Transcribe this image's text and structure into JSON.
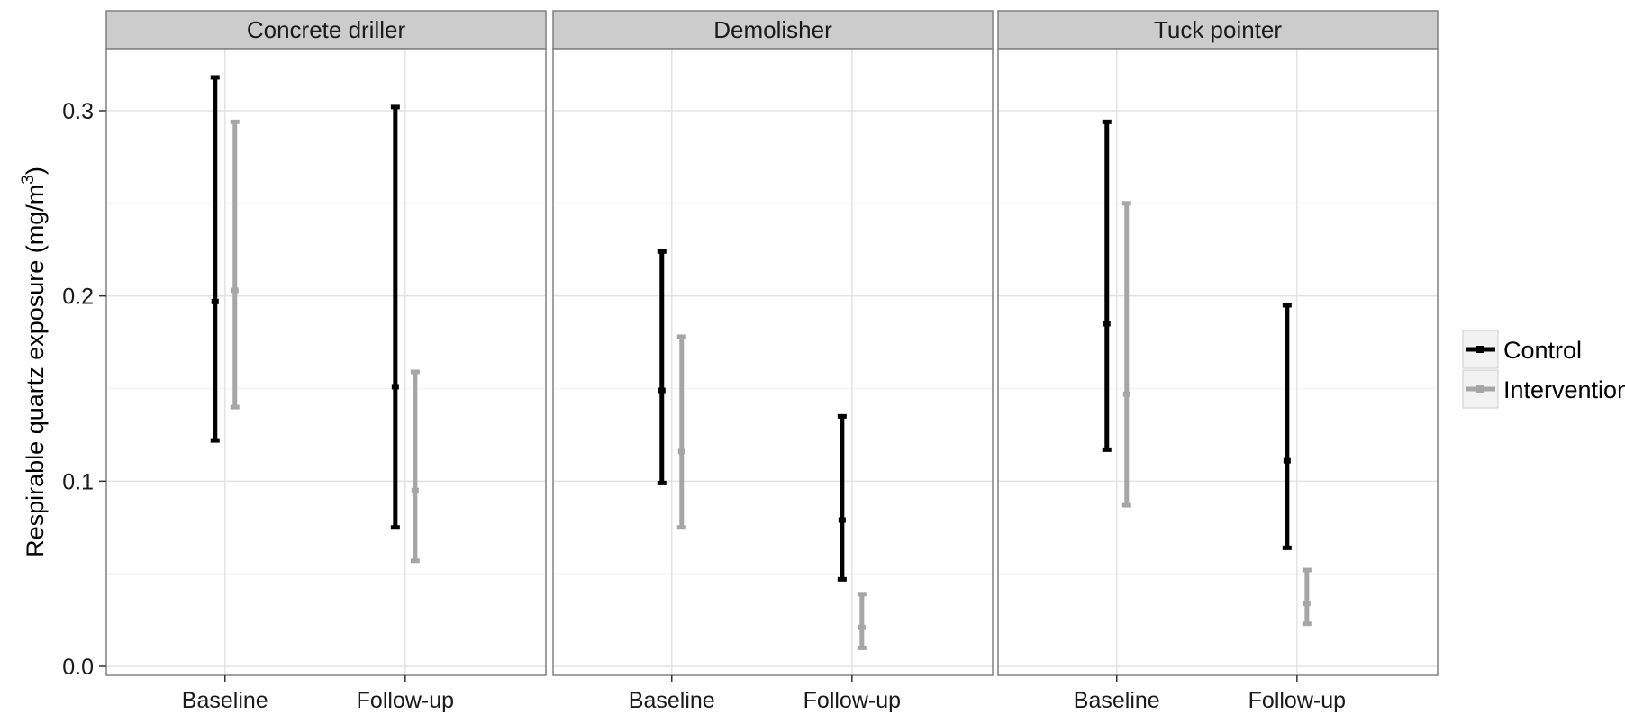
{
  "chart_data": {
    "type": "errorbar",
    "ylabel_main": "Respirable quartz exposure (mg/m",
    "ylabel_sup": "3",
    "ylabel_close": ")",
    "xlabel": "",
    "ylim": [
      0,
      0.34
    ],
    "yticks": [
      0.0,
      0.1,
      0.2,
      0.3
    ],
    "ytick_labels": [
      "0.0",
      "0.1",
      "0.2",
      "0.3"
    ],
    "categories": [
      "Baseline",
      "Follow-up"
    ],
    "grid": true,
    "legend_position": "right",
    "series_colors": {
      "Control": "#000000",
      "Intervention": "#a6a6a6"
    },
    "panels": [
      {
        "name": "Concrete driller",
        "series": [
          {
            "name": "Control",
            "points": [
              {
                "category": "Baseline",
                "mean": 0.197,
                "lower": 0.122,
                "upper": 0.318
              },
              {
                "category": "Follow-up",
                "mean": 0.151,
                "lower": 0.075,
                "upper": 0.302
              }
            ]
          },
          {
            "name": "Intervention",
            "points": [
              {
                "category": "Baseline",
                "mean": 0.203,
                "lower": 0.14,
                "upper": 0.294
              },
              {
                "category": "Follow-up",
                "mean": 0.095,
                "lower": 0.057,
                "upper": 0.159
              }
            ]
          }
        ]
      },
      {
        "name": "Demolisher",
        "series": [
          {
            "name": "Control",
            "points": [
              {
                "category": "Baseline",
                "mean": 0.149,
                "lower": 0.099,
                "upper": 0.224
              },
              {
                "category": "Follow-up",
                "mean": 0.079,
                "lower": 0.047,
                "upper": 0.135
              }
            ]
          },
          {
            "name": "Intervention",
            "points": [
              {
                "category": "Baseline",
                "mean": 0.116,
                "lower": 0.075,
                "upper": 0.178
              },
              {
                "category": "Follow-up",
                "mean": 0.021,
                "lower": 0.01,
                "upper": 0.039
              }
            ]
          }
        ]
      },
      {
        "name": "Tuck pointer",
        "series": [
          {
            "name": "Control",
            "points": [
              {
                "category": "Baseline",
                "mean": 0.185,
                "lower": 0.117,
                "upper": 0.294
              },
              {
                "category": "Follow-up",
                "mean": 0.111,
                "lower": 0.064,
                "upper": 0.195
              }
            ]
          },
          {
            "name": "Intervention",
            "points": [
              {
                "category": "Baseline",
                "mean": 0.147,
                "lower": 0.087,
                "upper": 0.25
              },
              {
                "category": "Follow-up",
                "mean": 0.034,
                "lower": 0.023,
                "upper": 0.052
              }
            ]
          }
        ]
      }
    ],
    "legend": [
      {
        "label": "Control",
        "series": "Control"
      },
      {
        "label": "Intervention",
        "series": "Intervention"
      }
    ]
  }
}
